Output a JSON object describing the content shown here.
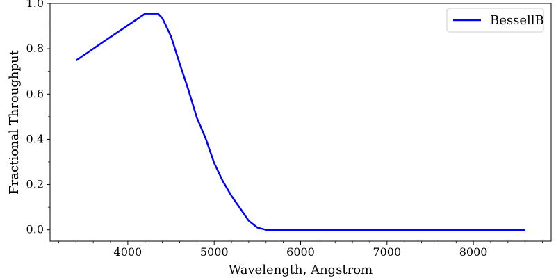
{
  "chart_data": {
    "type": "line",
    "xlabel": "Wavelength, Angstrom",
    "ylabel": "Fractional Throughput",
    "xlim": [
      3100,
      8900
    ],
    "ylim": [
      -0.05,
      1.0
    ],
    "x_ticks": [
      4000,
      5000,
      6000,
      7000,
      8000
    ],
    "x_tick_labels": [
      "4000",
      "5000",
      "6000",
      "7000",
      "8000"
    ],
    "y_ticks": [
      0.0,
      0.2,
      0.4,
      0.6,
      0.8,
      1.0
    ],
    "y_tick_labels": [
      "0.0",
      "0.2",
      "0.4",
      "0.6",
      "0.8",
      "1.0"
    ],
    "grid": false,
    "legend_position": "top-right",
    "series": [
      {
        "name": "BessellB",
        "color": "#0000ff",
        "x": [
          3400,
          3600,
          3800,
          4000,
          4200,
          4350,
          4400,
          4500,
          4600,
          4700,
          4800,
          4900,
          5000,
          5100,
          5200,
          5300,
          5400,
          5500,
          5600,
          5700,
          8600
        ],
        "y": [
          0.748,
          0.8,
          0.852,
          0.903,
          0.955,
          0.955,
          0.935,
          0.855,
          0.735,
          0.62,
          0.495,
          0.405,
          0.295,
          0.215,
          0.15,
          0.095,
          0.04,
          0.01,
          0.0,
          0.0,
          0.0
        ]
      }
    ]
  }
}
